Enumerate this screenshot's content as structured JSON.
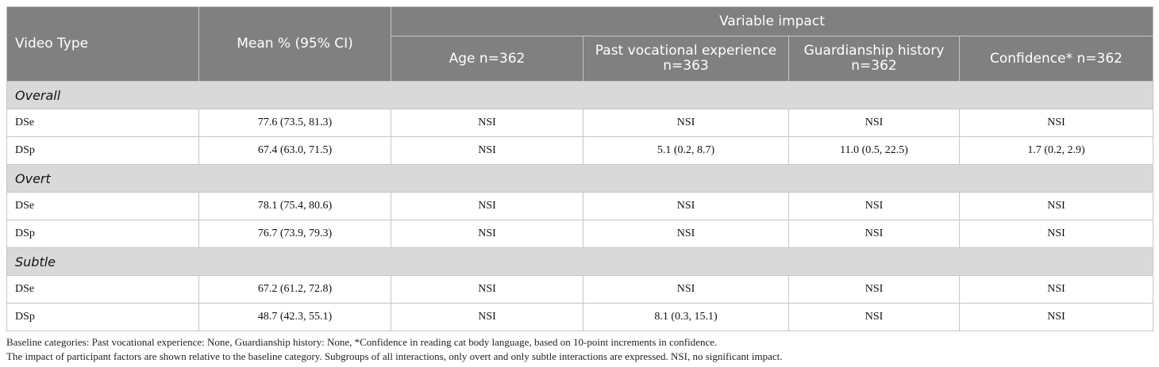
{
  "table": {
    "headers": {
      "video_type": "Video Type",
      "mean": "Mean % (95% CI)",
      "variable_impact": "Variable impact",
      "age": "Age n=362",
      "past_vocational": "Past vocational experience n=363",
      "guardianship": "Guardianship history n=362",
      "confidence": "Confidence* n=362"
    },
    "sections": [
      {
        "title": "Overall",
        "rows": [
          {
            "type": "DSe",
            "mean": "77.6 (73.5, 81.3)",
            "age": "NSI",
            "past": "NSI",
            "guard": "NSI",
            "conf": "NSI"
          },
          {
            "type": "DSp",
            "mean": "67.4 (63.0, 71.5)",
            "age": "NSI",
            "past": "5.1 (0.2, 8.7)",
            "guard": "11.0 (0.5, 22.5)",
            "conf": "1.7 (0.2, 2.9)"
          }
        ]
      },
      {
        "title": "Overt",
        "rows": [
          {
            "type": "DSe",
            "mean": "78.1 (75.4, 80.6)",
            "age": "NSI",
            "past": "NSI",
            "guard": "NSI",
            "conf": "NSI"
          },
          {
            "type": "DSp",
            "mean": "76.7 (73.9, 79.3)",
            "age": "NSI",
            "past": "NSI",
            "guard": "NSI",
            "conf": "NSI"
          }
        ]
      },
      {
        "title": "Subtle",
        "rows": [
          {
            "type": "DSe",
            "mean": "67.2 (61.2, 72.8)",
            "age": "NSI",
            "past": "NSI",
            "guard": "NSI",
            "conf": "NSI"
          },
          {
            "type": "DSp",
            "mean": "48.7 (42.3, 55.1)",
            "age": "NSI",
            "past": "8.1 (0.3, 15.1)",
            "guard": "NSI",
            "conf": "NSI"
          }
        ]
      }
    ]
  },
  "footnotes": {
    "line1": "Baseline categories: Past vocational experience: None, Guardianship history: None, *Confidence in reading cat body language, based on 10-point increments in confidence.",
    "line2": "The impact of participant factors are shown relative to the baseline category. Subgroups of all interactions, only overt and only subtle interactions are expressed. NSI, no significant impact."
  }
}
